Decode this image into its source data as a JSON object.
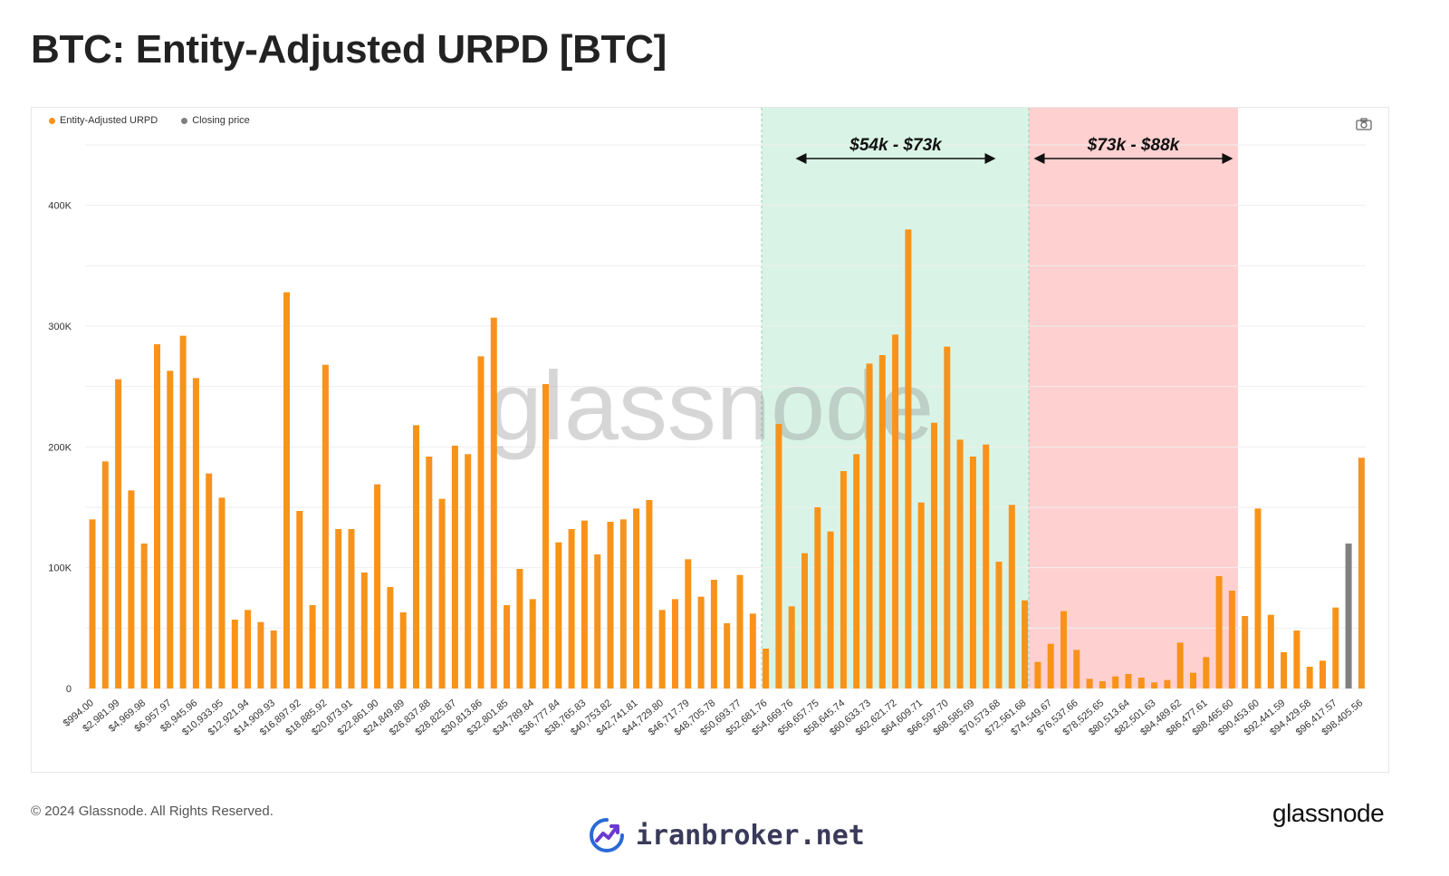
{
  "page": {
    "title": "BTC: Entity-Adjusted URPD [BTC]",
    "copyright": "© 2024 Glassnode. All Rights Reserved.",
    "brand": "glassnode",
    "watermark": "glassnode",
    "site": "iranbroker.net"
  },
  "legend": [
    {
      "label": "Entity-Adjusted URPD",
      "color": "#f7931a"
    },
    {
      "label": "Closing price",
      "color": "#808080"
    }
  ],
  "icons": {
    "camera": "camera-icon",
    "site_logo": "trend-chart-icon"
  },
  "colors": {
    "bar": "#f7931a",
    "closing_bar": "#808080",
    "green_zone": "#d9f4e6",
    "red_zone": "#ffd0d0",
    "grid": "#eeeeee"
  },
  "chart_data": {
    "type": "bar",
    "title": "BTC: Entity-Adjusted URPD [BTC]",
    "ylim": [
      0,
      450000
    ],
    "y_ticks": [
      {
        "value": 0,
        "label": "0"
      },
      {
        "value": 100000,
        "label": "100K"
      },
      {
        "value": 200000,
        "label": "200K"
      },
      {
        "value": 300000,
        "label": "300K"
      },
      {
        "value": 400000,
        "label": "400K"
      }
    ],
    "x_tick_labels": [
      "$994.00",
      "$2,981.99",
      "$4,969.98",
      "$6,957.97",
      "$8,945.96",
      "$10,933.95",
      "$12,921.94",
      "$14,909.93",
      "$16,897.92",
      "$18,885.92",
      "$20,873.91",
      "$22,861.90",
      "$24,849.89",
      "$26,837.88",
      "$28,825.87",
      "$30,813.86",
      "$32,801.85",
      "$34,789.84",
      "$36,777.84",
      "$38,765.83",
      "$40,753.82",
      "$42,741.81",
      "$44,729.80",
      "$46,717.79",
      "$48,705.78",
      "$50,693.77",
      "$52,681.76",
      "$54,669.76",
      "$56,657.75",
      "$58,645.74",
      "$60,633.73",
      "$62,621.72",
      "$64,609.71",
      "$66,597.70",
      "$68,585.69",
      "$70,573.68",
      "$72,561.68",
      "$74,549.67",
      "$76,537.66",
      "$78,525.65",
      "$80,513.64",
      "$82,501.63",
      "$84,489.62",
      "$86,477.61",
      "$88,465.60",
      "$90,453.60",
      "$92,441.59",
      "$94,429.58",
      "$96,417.57",
      "$98,405.56"
    ],
    "series": [
      {
        "name": "Entity-Adjusted URPD",
        "values": [
          140000,
          188000,
          256000,
          164000,
          120000,
          285000,
          263000,
          292000,
          257000,
          178000,
          158000,
          57000,
          65000,
          55000,
          48000,
          328000,
          147000,
          69000,
          268000,
          132000,
          132000,
          96000,
          169000,
          84000,
          63000,
          218000,
          192000,
          157000,
          201000,
          194000,
          275000,
          307000,
          69000,
          99000,
          74000,
          252000,
          121000,
          132000,
          139000,
          111000,
          138000,
          140000,
          149000,
          156000,
          65000,
          74000,
          107000,
          76000,
          90000,
          54000,
          94000,
          62000,
          33000,
          219000,
          68000,
          112000,
          150000,
          130000,
          180000,
          194000,
          269000,
          276000,
          293000,
          380000,
          154000,
          220000,
          283000,
          206000,
          192000,
          202000,
          105000,
          152000,
          73000,
          22000,
          37000,
          64000,
          32000,
          8000,
          6000,
          10000,
          12000,
          9000,
          5000,
          7000,
          38000,
          13000,
          26000,
          93000,
          81000,
          60000,
          149000,
          61000,
          30000,
          48000,
          18000,
          23000,
          67000,
          120000,
          191000
        ]
      }
    ],
    "closing_price_bar_index": 97,
    "annotations": [
      {
        "label": "$54k - $73k",
        "color": "green",
        "from_tick": 27,
        "to_tick": 36
      },
      {
        "label": "$73k - $88k",
        "color": "red",
        "from_tick": 36,
        "to_tick": 44
      }
    ],
    "legend_position": "top-left",
    "grid": true
  }
}
